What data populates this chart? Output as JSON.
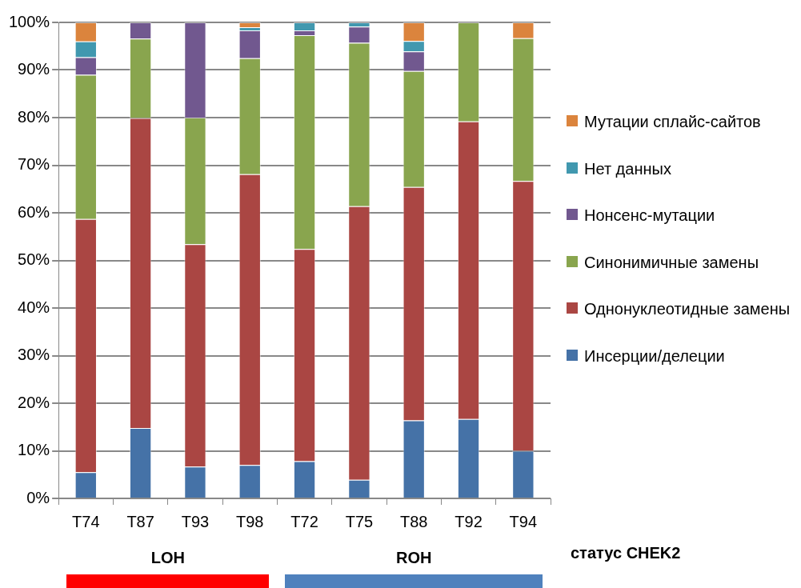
{
  "chart_data": {
    "type": "bar",
    "stacked": true,
    "categories": [
      "T74",
      "T87",
      "T93",
      "T98",
      "T72",
      "T75",
      "T88",
      "T92",
      "T94"
    ],
    "series": [
      {
        "name": "Инсерции/делеции",
        "color": "#4572a7",
        "values": [
          5.5,
          14.8,
          6.7,
          7.0,
          7.8,
          3.9,
          16.4,
          16.7,
          10.0
        ]
      },
      {
        "name": "Однонуклеотидные замены",
        "color": "#aa4643",
        "values": [
          53.2,
          65.1,
          46.7,
          61.1,
          44.6,
          57.5,
          49.0,
          62.5,
          56.7
        ]
      },
      {
        "name": "Синонимичные замены",
        "color": "#89a54e",
        "values": [
          30.3,
          16.7,
          26.6,
          24.4,
          44.9,
          34.3,
          24.4,
          20.8,
          30.0
        ]
      },
      {
        "name": "Нонсенс-мутации",
        "color": "#71588f",
        "values": [
          3.7,
          3.4,
          20.0,
          5.8,
          1.0,
          3.4,
          4.1,
          0,
          0
        ]
      },
      {
        "name": "Нет данных",
        "color": "#4198af",
        "values": [
          3.3,
          0,
          0,
          0.7,
          1.7,
          0.9,
          2.2,
          0,
          0
        ]
      },
      {
        "name": "Мутации сплайс-сайтов",
        "color": "#db843d",
        "values": [
          4.0,
          0,
          0,
          1.0,
          0,
          0,
          3.9,
          0,
          3.3
        ]
      }
    ],
    "ylim": [
      0,
      100
    ],
    "yticks": [
      {
        "value": 0,
        "label": "0%"
      },
      {
        "value": 10,
        "label": "10%"
      },
      {
        "value": 20,
        "label": "20%"
      },
      {
        "value": 30,
        "label": "30%"
      },
      {
        "value": 40,
        "label": "40%"
      },
      {
        "value": 50,
        "label": "50%"
      },
      {
        "value": 60,
        "label": "60%"
      },
      {
        "value": 70,
        "label": "70%"
      },
      {
        "value": 80,
        "label": "80%"
      },
      {
        "value": 90,
        "label": "90%"
      },
      {
        "value": 100,
        "label": "100%"
      }
    ],
    "grid": "y",
    "legend": "right",
    "annotations": [
      "LOH",
      "ROH",
      "статус CHEK2"
    ]
  }
}
